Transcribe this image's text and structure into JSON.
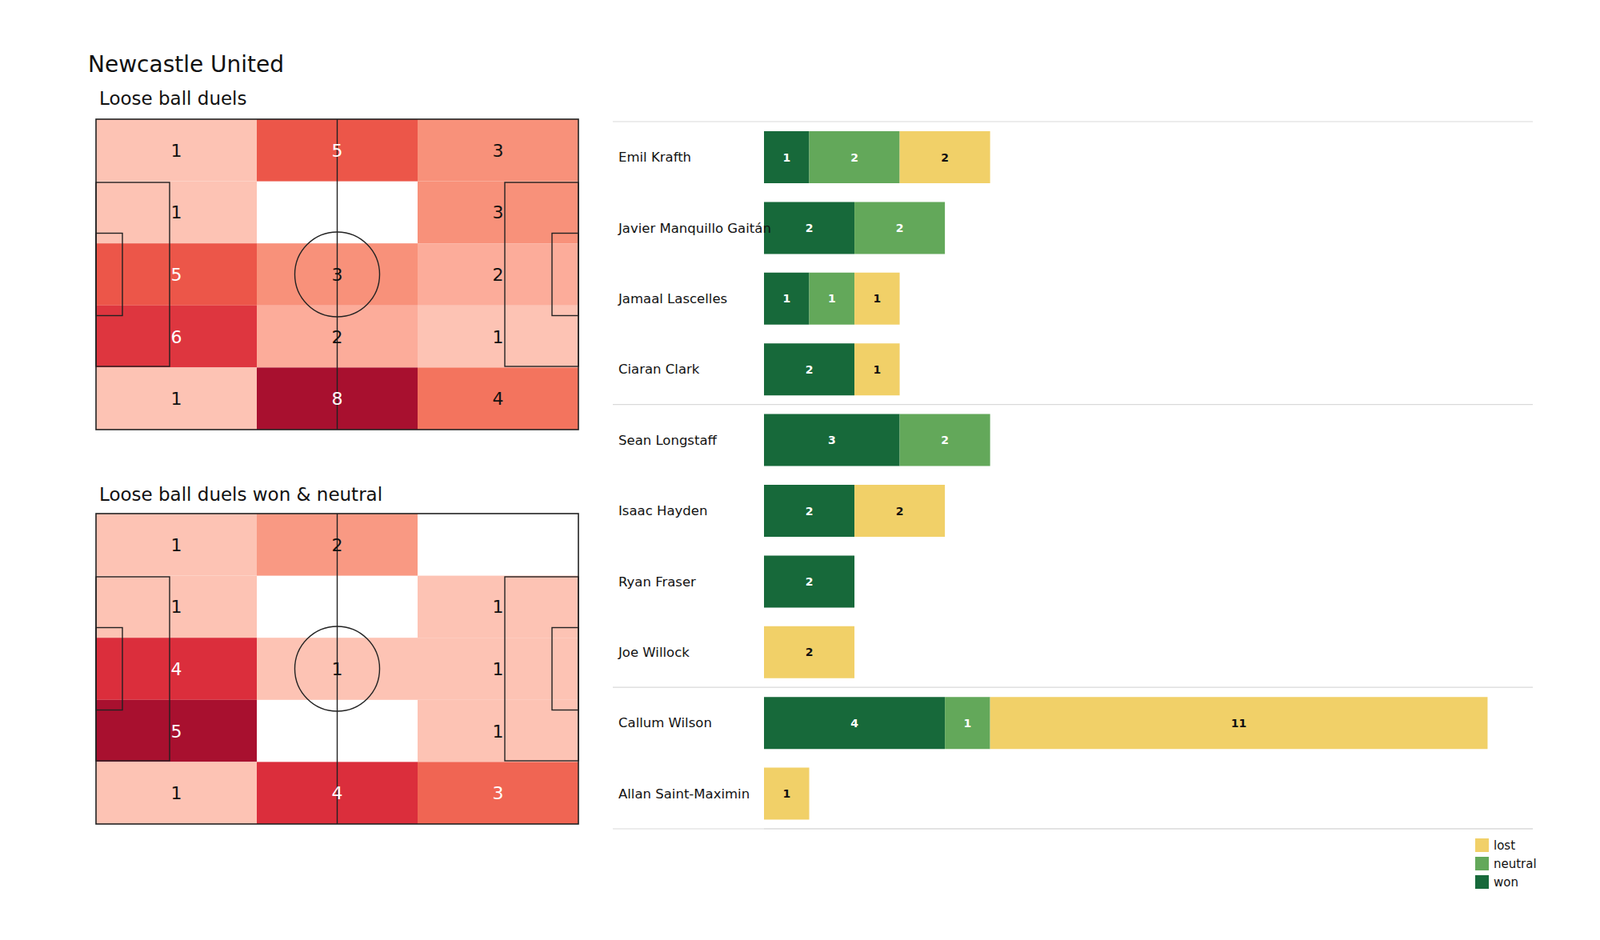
{
  "title": "Newcastle United",
  "chart_data": [
    {
      "type": "heatmap",
      "title": "Loose ball duels",
      "tick_labels": false,
      "cells": [
        [
          1,
          5,
          3
        ],
        [
          1,
          null,
          3
        ],
        [
          5,
          3,
          2
        ],
        [
          6,
          2,
          1
        ],
        [
          1,
          8,
          4
        ]
      ]
    },
    {
      "type": "heatmap",
      "title": "Loose ball duels won & neutral",
      "tick_labels": false,
      "cells": [
        [
          1,
          2,
          null
        ],
        [
          1,
          null,
          1
        ],
        [
          4,
          1,
          1
        ],
        [
          5,
          null,
          1
        ],
        [
          1,
          4,
          3
        ]
      ]
    },
    {
      "type": "bar",
      "orientation": "horizontal",
      "stacked": true,
      "data_labels": true,
      "tick_labels": "y",
      "legend": "lower right",
      "xlim": [
        0,
        17
      ],
      "categories": [
        "Emil Krafth",
        "Javier Manquillo Gaitán",
        "Jamaal Lascelles",
        "Ciaran Clark",
        "Sean Longstaff",
        "Isaac Hayden",
        "Ryan Fraser",
        "Joe Willock",
        "Callum Wilson",
        "Allan Saint-Maximin"
      ],
      "series": [
        {
          "name": "won",
          "color": "#17693a",
          "values": [
            1,
            2,
            1,
            2,
            3,
            2,
            2,
            null,
            4,
            null
          ]
        },
        {
          "name": "neutral",
          "color": "#63a85a",
          "values": [
            2,
            2,
            1,
            null,
            2,
            null,
            null,
            null,
            1,
            null
          ]
        },
        {
          "name": "lost",
          "color": "#f1d068",
          "values": [
            2,
            null,
            1,
            1,
            null,
            2,
            null,
            2,
            11,
            1
          ]
        }
      ]
    }
  ]
}
